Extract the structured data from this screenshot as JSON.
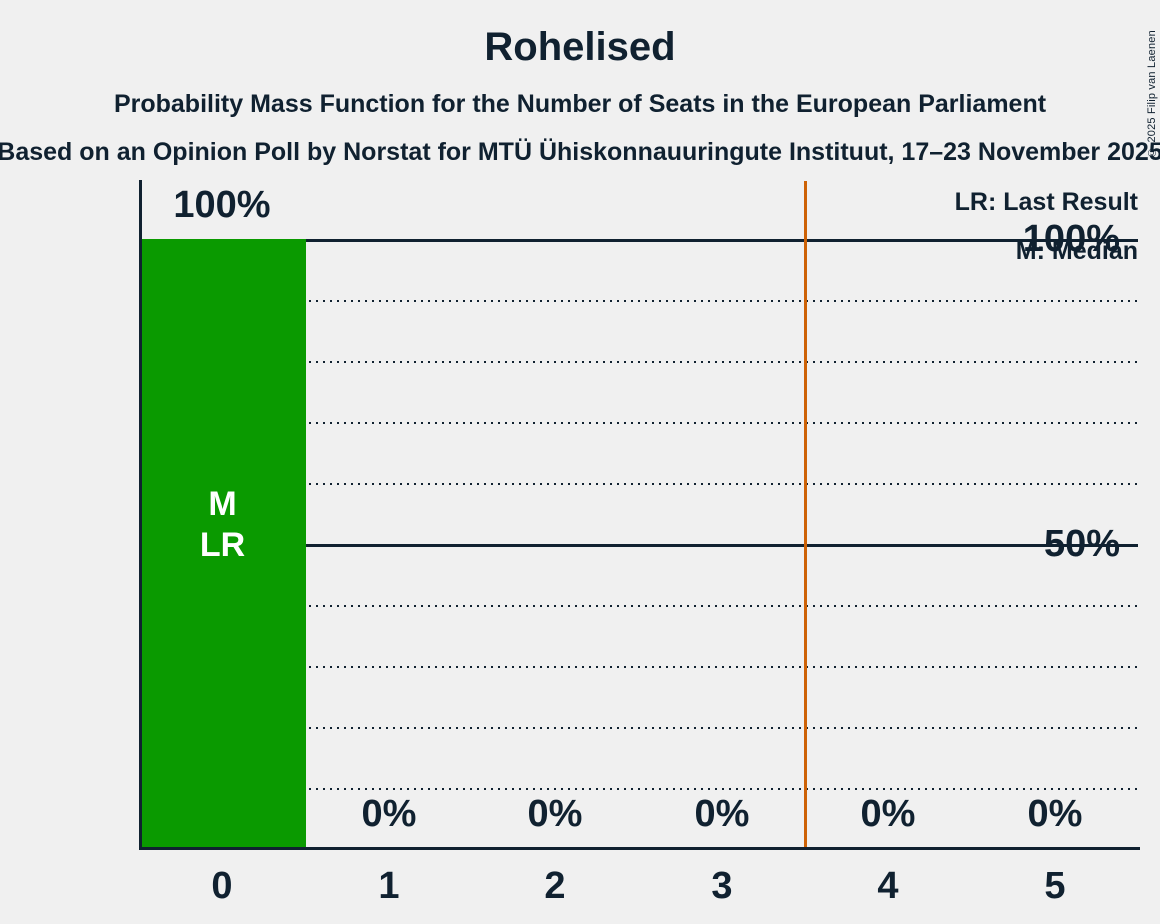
{
  "chart_data": {
    "type": "bar",
    "title": "Rohelised",
    "subtitle": "Probability Mass Function for the Number of Seats in the European Parliament",
    "source_line": "Based on an Opinion Poll by Norstat for MTÜ Ühiskonnauuringute Instituut, 17–23 November 2025",
    "copyright": "© 2025 Filip van Laenen",
    "categories": [
      "0",
      "1",
      "2",
      "3",
      "4",
      "5"
    ],
    "values": [
      100,
      0,
      0,
      0,
      0,
      0
    ],
    "value_labels": [
      "100%",
      "0%",
      "0%",
      "0%",
      "0%",
      "0%"
    ],
    "y_ticks": [
      "100%",
      "50%"
    ],
    "ylim": [
      0,
      100
    ],
    "grid": "horizontal dotted every 10%, solid at 50% and 100%",
    "legend": {
      "lr": "LR: Last Result",
      "m": "M: Median"
    },
    "annotations": {
      "median": "M",
      "last_result": "LR",
      "annotated_seat": "0"
    },
    "threshold_line_x": 3.5,
    "colors": {
      "bar": "#0A9A00",
      "threshold_line": "#CD6206",
      "text": "#102130",
      "bar_text": "#FFFFFF",
      "background": "#F0F0F0"
    }
  }
}
